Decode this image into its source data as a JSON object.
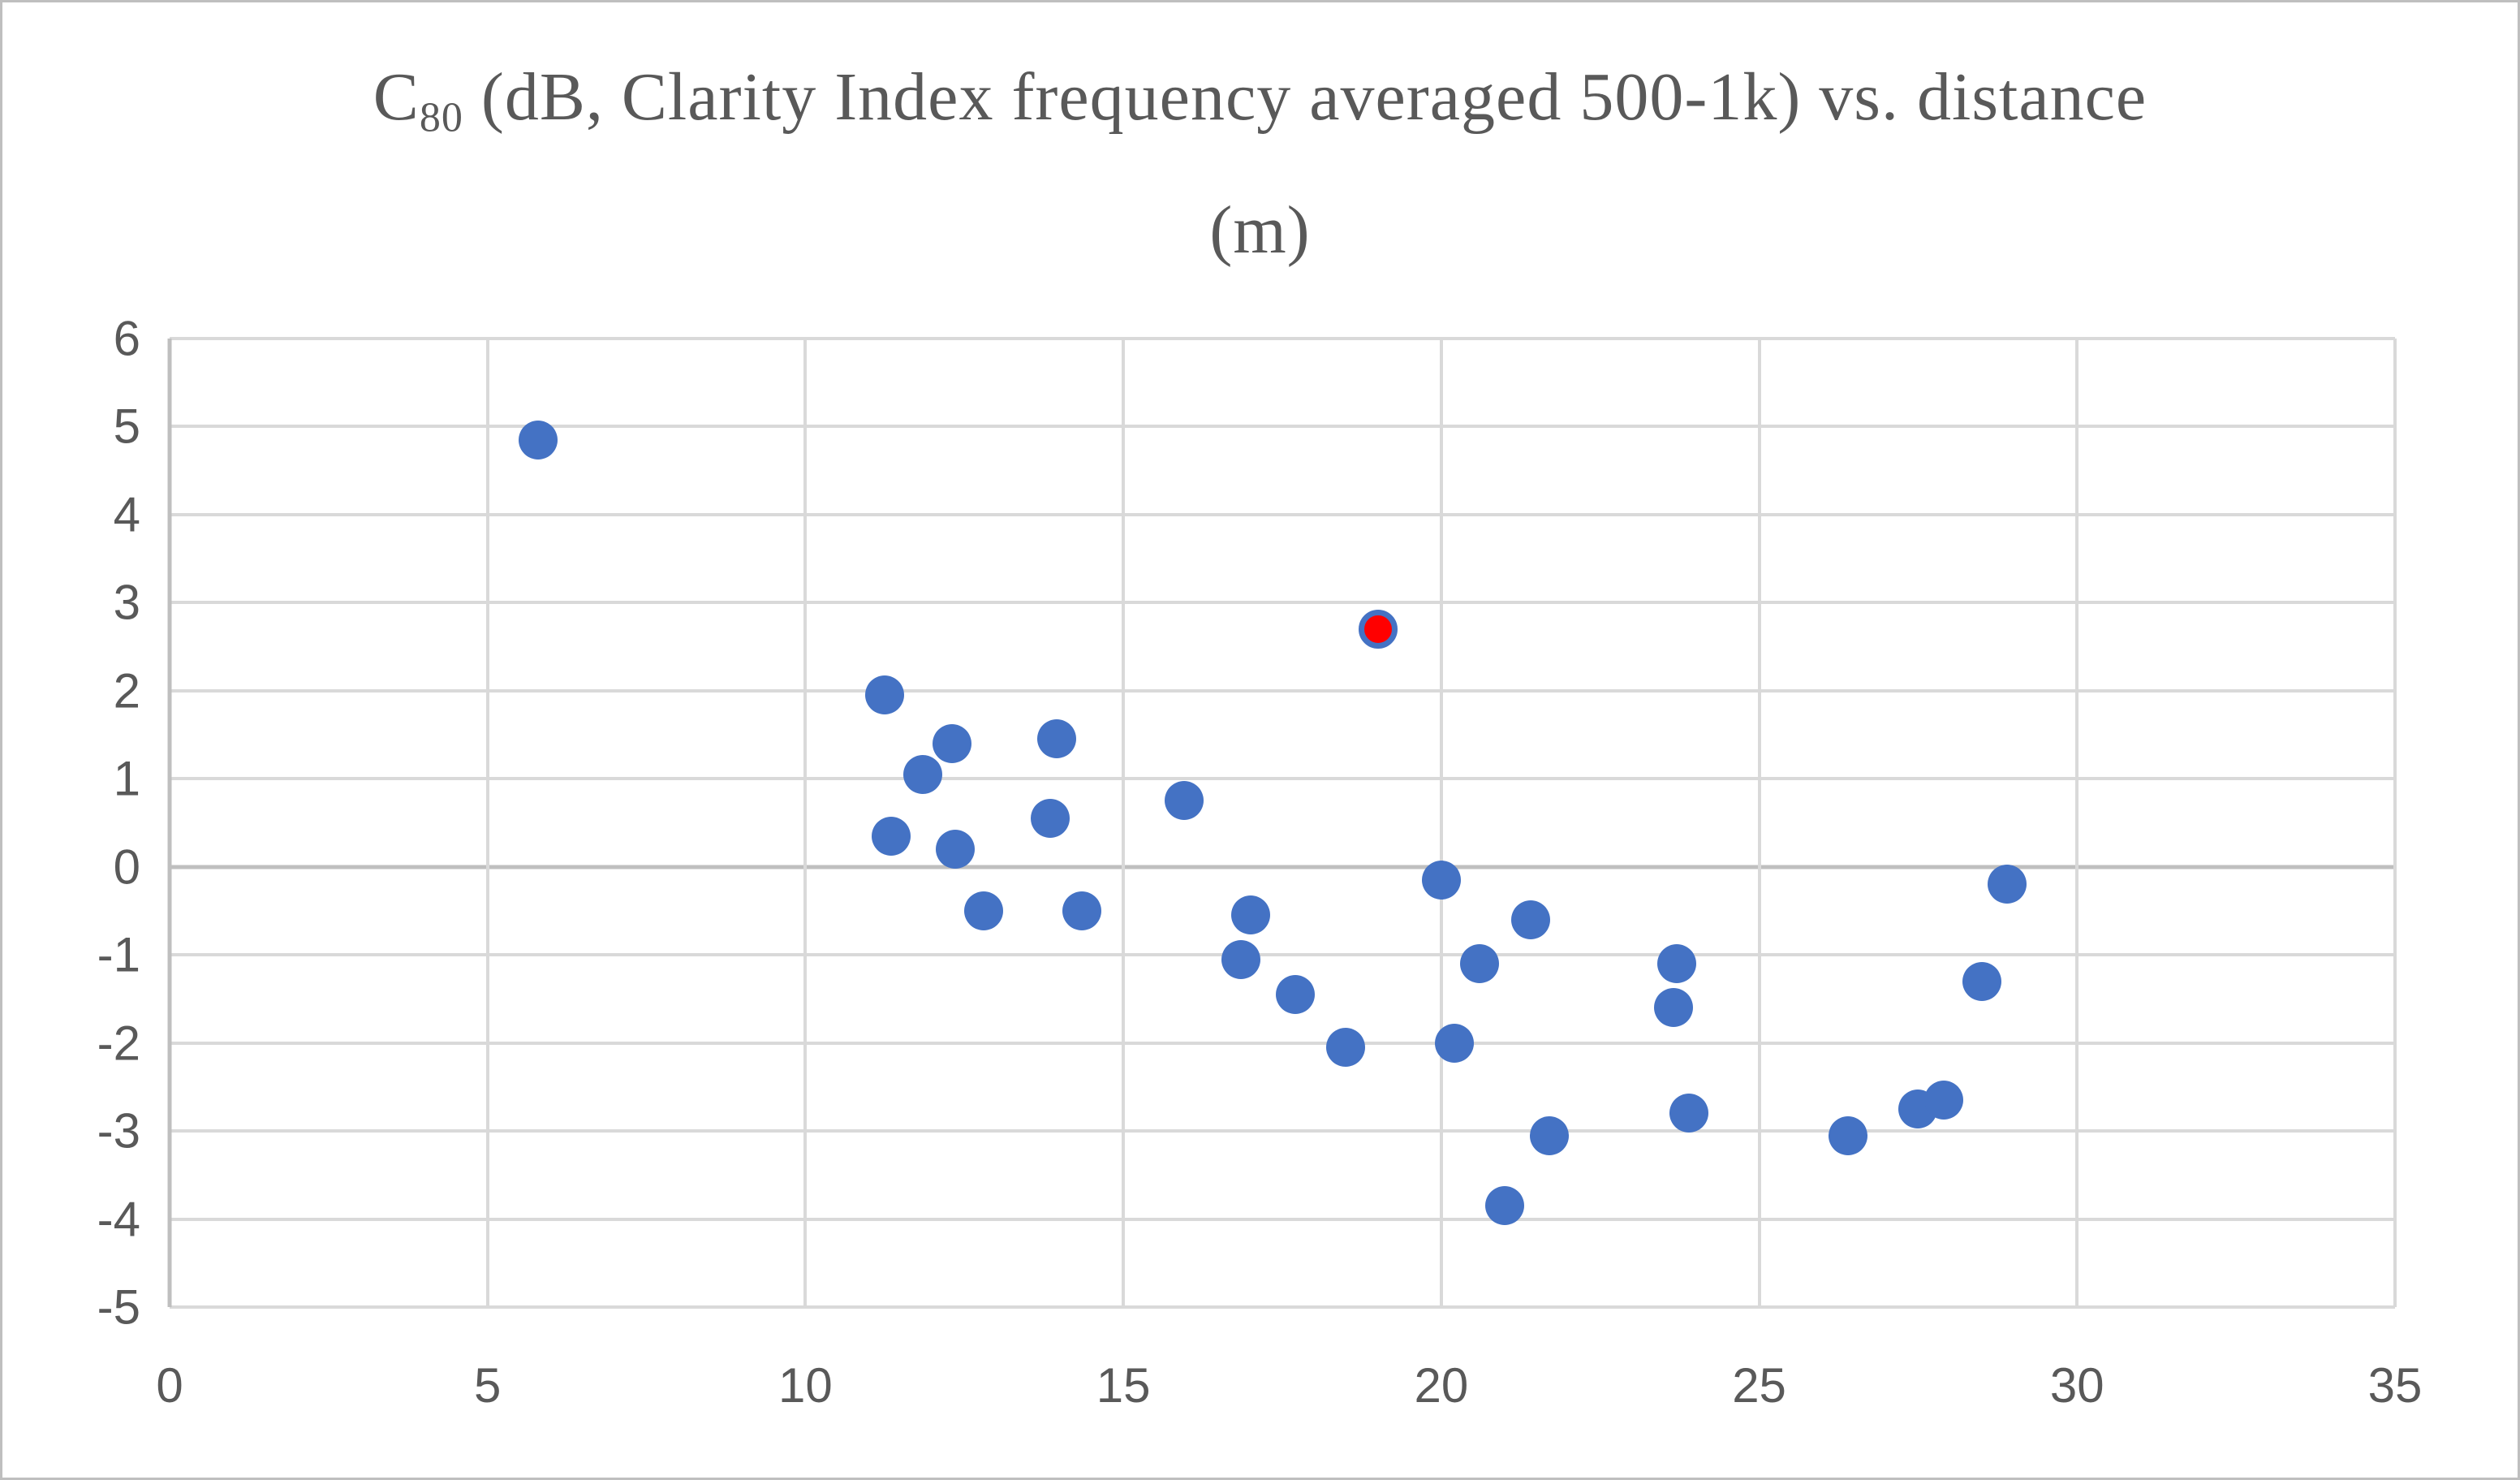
{
  "figure": {
    "title_prefix": "C",
    "title_subscript": "80",
    "title_rest": " (dB, Clarity Index frequency averaged 500-1k) vs. distance",
    "title_line2": "(m)"
  },
  "chart_data": {
    "type": "scatter",
    "title": "C80 (dB, Clarity Index frequency averaged 500-1k) vs. distance (m)",
    "xlabel": "",
    "ylabel": "",
    "xlim": [
      0,
      35
    ],
    "ylim": [
      -5,
      6
    ],
    "x_ticks": [
      0,
      5,
      10,
      15,
      20,
      25,
      30,
      35
    ],
    "y_ticks": [
      6,
      5,
      4,
      3,
      2,
      1,
      0,
      -1,
      -2,
      -3,
      -4,
      -5
    ],
    "grid": true,
    "legend": "none",
    "series": [
      {
        "name": "measurement-points",
        "color": "#4472C4",
        "points": [
          [
            5.8,
            4.85
          ],
          [
            11.25,
            1.95
          ],
          [
            11.35,
            0.35
          ],
          [
            11.85,
            1.05
          ],
          [
            12.3,
            1.4
          ],
          [
            12.35,
            0.2
          ],
          [
            12.8,
            -0.5
          ],
          [
            13.85,
            0.55
          ],
          [
            13.95,
            1.45
          ],
          [
            14.35,
            -0.5
          ],
          [
            15.95,
            0.75
          ],
          [
            16.85,
            -1.05
          ],
          [
            17.0,
            -0.55
          ],
          [
            17.7,
            -1.45
          ],
          [
            18.5,
            -2.05
          ],
          [
            20.0,
            -0.15
          ],
          [
            20.2,
            -2.0
          ],
          [
            20.6,
            -1.1
          ],
          [
            21.0,
            -3.85
          ],
          [
            21.4,
            -0.6
          ],
          [
            21.7,
            -3.05
          ],
          [
            23.65,
            -1.6
          ],
          [
            23.7,
            -1.1
          ],
          [
            23.9,
            -2.8
          ],
          [
            26.4,
            -3.05
          ],
          [
            27.5,
            -2.75
          ],
          [
            27.9,
            -2.65
          ],
          [
            28.5,
            -1.3
          ],
          [
            28.9,
            -0.2
          ]
        ]
      },
      {
        "name": "highlighted-point",
        "color": "#FF0000",
        "border_color": "#4472C4",
        "points": [
          [
            19.0,
            2.7
          ]
        ]
      }
    ]
  },
  "colors": {
    "point": "#4472C4",
    "highlight_fill": "#FF0000",
    "highlight_border": "#4472C4",
    "gridline": "#D9D9D9",
    "axis_line": "#BFBFBF",
    "text": "#595959",
    "figure_border": "#BFBFBF",
    "background": "#FFFFFF"
  }
}
